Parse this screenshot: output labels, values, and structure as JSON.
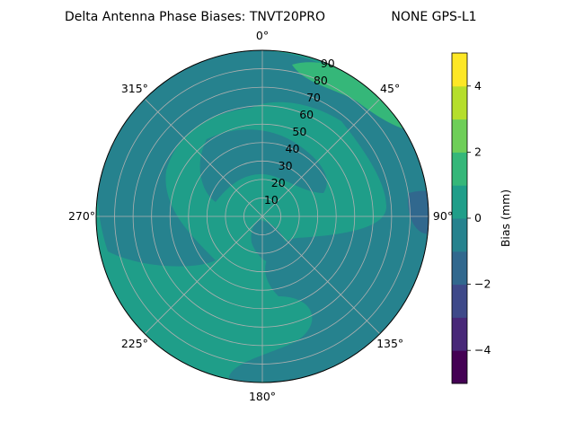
{
  "chart_data": {
    "type": "polar-contour",
    "title": "Delta Antenna Phase Biases: TNVT20PRO",
    "subtitle": "NONE GPS-L1",
    "angular_ticks": [
      "0°",
      "45°",
      "90°",
      "135°",
      "180°",
      "225°",
      "270°",
      "315°"
    ],
    "radial_ticks": [
      "10",
      "20",
      "30",
      "40",
      "50",
      "60",
      "70",
      "80",
      "90"
    ],
    "rlim": [
      0,
      90
    ],
    "theta_zero": "top",
    "theta_direction": "clockwise",
    "grid": true,
    "colorbar": {
      "label": "Bias (mm)",
      "vmin": -5,
      "vmax": 5,
      "level_step": 1,
      "ticks": [
        "−4",
        "−2",
        "0",
        "2",
        "4"
      ],
      "colors": [
        "#440154",
        "#482878",
        "#3e4989",
        "#31688e",
        "#26828e",
        "#1f9e89",
        "#35b779",
        "#6ece58",
        "#b5de2b",
        "#fde725"
      ]
    },
    "regions": [
      {
        "level": "0 to 1",
        "color": "#1f9e89",
        "where": "background / most of sky"
      },
      {
        "level": "-1 to 0",
        "color": "#26828e",
        "where": "spiral bands from zenith outward, ring near horizon"
      },
      {
        "level": "1 to 2",
        "color": "#35b779",
        "where": "north-east near horizon (az 20°–50°)"
      },
      {
        "level": "-2 to -1",
        "color": "#31688e",
        "where": "small patch east at horizon (az ~90°)"
      }
    ]
  }
}
